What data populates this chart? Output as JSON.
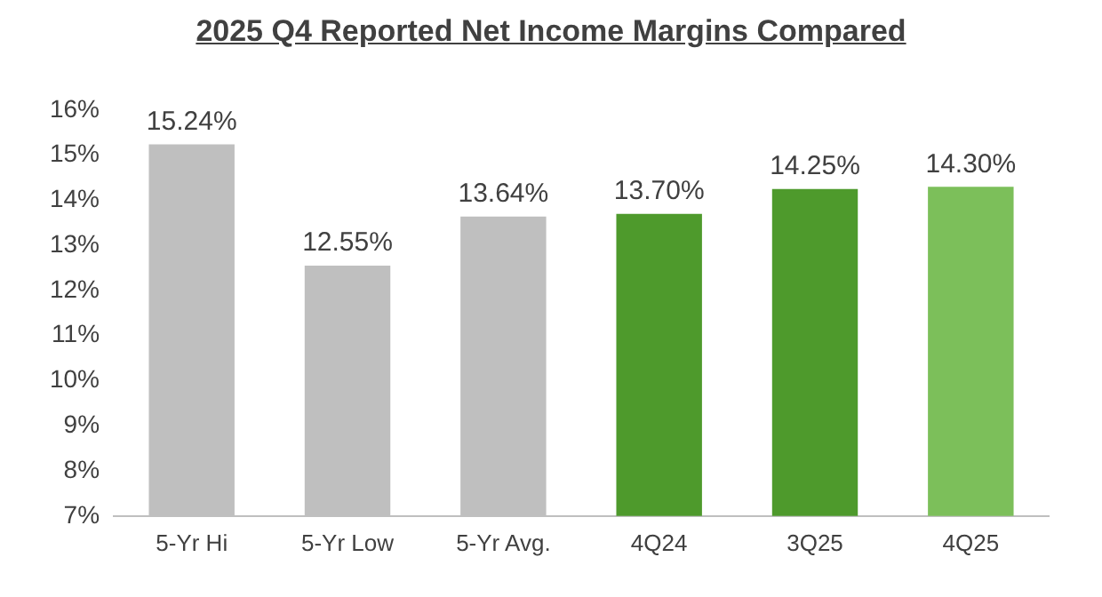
{
  "chart_data": {
    "type": "bar",
    "title": "2025 Q4 Reported Net Income Margins Compared",
    "categories": [
      "5-Yr Hi",
      "5-Yr Low",
      "5-Yr Avg.",
      "4Q24",
      "3Q25",
      "4Q25"
    ],
    "values": [
      15.24,
      12.55,
      13.64,
      13.7,
      14.25,
      14.3
    ],
    "colors": [
      "#bfbfbf",
      "#bfbfbf",
      "#bfbfbf",
      "#4e9a2c",
      "#4e9a2c",
      "#7cbf5a"
    ],
    "value_labels": [
      "15.24%",
      "12.55%",
      "13.64%",
      "13.70%",
      "14.25%",
      "14.30%"
    ],
    "ylim": [
      7,
      16
    ],
    "yticks": [
      {
        "value": 7,
        "label": "7%"
      },
      {
        "value": 8,
        "label": "8%"
      },
      {
        "value": 9,
        "label": "9%"
      },
      {
        "value": 10,
        "label": "10%"
      },
      {
        "value": 11,
        "label": "11%"
      },
      {
        "value": 12,
        "label": "12%"
      },
      {
        "value": 13,
        "label": "13%"
      },
      {
        "value": 14,
        "label": "14%"
      },
      {
        "value": 15,
        "label": "15%"
      },
      {
        "value": 16,
        "label": "16%"
      }
    ],
    "grid": false,
    "legend": false
  }
}
